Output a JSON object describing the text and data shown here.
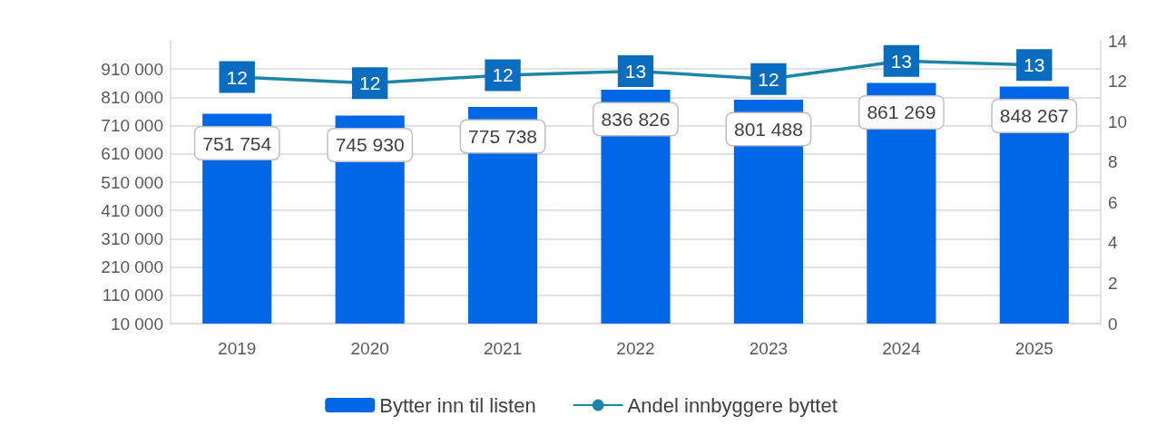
{
  "chart_data": {
    "type": "bar",
    "categories": [
      "2019",
      "2020",
      "2021",
      "2022",
      "2023",
      "2024",
      "2025"
    ],
    "series": [
      {
        "name": "Bytter inn til listen",
        "color": "#0068e6",
        "values": [
          751754,
          745930,
          775738,
          836826,
          801488,
          861269,
          848267
        ],
        "value_labels": [
          "751 754",
          "745 930",
          "775 738",
          "836 826",
          "801 488",
          "861 269",
          "848 267"
        ]
      },
      {
        "name": "Andel innbyggere byttet",
        "type": "line",
        "axis": "y2",
        "color": "#1b86a6",
        "marker": "circle",
        "values": [
          12.2,
          11.9,
          12.3,
          12.5,
          12.1,
          13.0,
          12.8
        ],
        "value_labels": [
          "12",
          "12",
          "12",
          "13",
          "12",
          "13",
          "13"
        ]
      }
    ],
    "ylim": [
      10000,
      1010000
    ],
    "yticks": [
      {
        "value": 10000,
        "label": "10 000"
      },
      {
        "value": 110000,
        "label": "110 000"
      },
      {
        "value": 210000,
        "label": "210 000"
      },
      {
        "value": 310000,
        "label": "310 000"
      },
      {
        "value": 410000,
        "label": "410 000"
      },
      {
        "value": 510000,
        "label": "510 000"
      },
      {
        "value": 610000,
        "label": "610 000"
      },
      {
        "value": 710000,
        "label": "710 000"
      },
      {
        "value": 810000,
        "label": "810 000"
      },
      {
        "value": 910000,
        "label": "910 000"
      }
    ],
    "y2lim": [
      0,
      14
    ],
    "y2ticks": [
      0,
      2,
      4,
      6,
      8,
      10,
      12,
      14
    ],
    "grid": "y",
    "legend": "bottom"
  }
}
